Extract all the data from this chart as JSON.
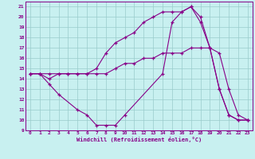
{
  "xlabel": "Windchill (Refroidissement éolien,°C)",
  "bg_color": "#c8f0f0",
  "line_color": "#880088",
  "grid_color": "#99cccc",
  "xlim": [
    -0.5,
    23.5
  ],
  "ylim": [
    9,
    21.5
  ],
  "yticks": [
    9,
    10,
    11,
    12,
    13,
    14,
    15,
    16,
    17,
    18,
    19,
    20,
    21
  ],
  "xticks": [
    0,
    1,
    2,
    3,
    4,
    5,
    6,
    7,
    8,
    9,
    10,
    11,
    12,
    13,
    14,
    15,
    16,
    17,
    18,
    19,
    20,
    21,
    22,
    23
  ],
  "series": [
    {
      "x": [
        0,
        1,
        2,
        3,
        4,
        5,
        6,
        7,
        8,
        9,
        10,
        11,
        12,
        13,
        14,
        15,
        16,
        17,
        18,
        19,
        20,
        21,
        22,
        23
      ],
      "y": [
        14.5,
        14.5,
        14.5,
        14.5,
        14.5,
        14.5,
        14.5,
        14.5,
        14.5,
        15.0,
        15.5,
        15.5,
        16.0,
        16.0,
        16.5,
        16.5,
        16.5,
        17.0,
        17.0,
        17.0,
        16.5,
        13.0,
        10.5,
        10.0
      ]
    },
    {
      "x": [
        0,
        1,
        2,
        3,
        4,
        5,
        6,
        7,
        8,
        9,
        10,
        11,
        12,
        13,
        14,
        15,
        16,
        17,
        18,
        19,
        20,
        21,
        22,
        23
      ],
      "y": [
        14.5,
        14.5,
        14.0,
        14.5,
        14.5,
        14.5,
        14.5,
        15.0,
        16.5,
        17.5,
        18.0,
        18.5,
        19.5,
        20.0,
        20.5,
        20.5,
        20.5,
        21.0,
        20.0,
        17.0,
        13.0,
        10.5,
        10.0,
        10.0
      ]
    },
    {
      "x": [
        0,
        1,
        2,
        3,
        5,
        6,
        7,
        8,
        9,
        10,
        14,
        15,
        16,
        17,
        18,
        19,
        20,
        21,
        22,
        23
      ],
      "y": [
        14.5,
        14.5,
        13.5,
        12.5,
        11.0,
        10.5,
        9.5,
        9.5,
        9.5,
        10.5,
        14.5,
        19.5,
        20.5,
        21.0,
        19.5,
        17.0,
        13.0,
        10.5,
        10.0,
        10.0
      ]
    }
  ]
}
